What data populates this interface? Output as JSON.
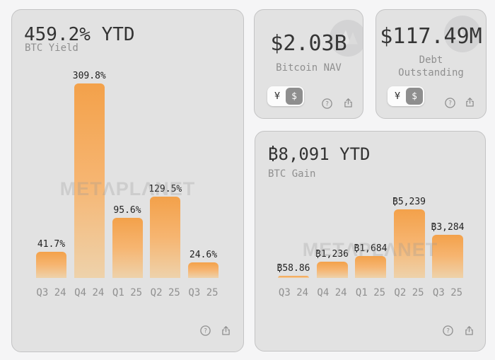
{
  "page": {
    "background": "#f5f5f6"
  },
  "watermark_text": "METΛPLΛNET",
  "cards": {
    "btc_yield": {
      "title": "459.2% YTD",
      "subtitle": "BTC Yield"
    },
    "bitcoin_nav": {
      "value": "$2.03B",
      "label": "Bitcoin NAV",
      "currency_options": [
        "¥",
        "$"
      ],
      "selected_currency": "$"
    },
    "debt_outstanding": {
      "value": "$117.49M",
      "label_line1": "Debt",
      "label_line2": "Outstanding",
      "currency_options": [
        "¥",
        "$"
      ],
      "selected_currency": "$"
    },
    "btc_gain": {
      "title": "₿8,091 YTD",
      "subtitle": "BTC Gain"
    }
  },
  "chart_data": [
    {
      "type": "bar",
      "title": "459.2% YTD",
      "metric": "BTC Yield",
      "categories": [
        "Q3 24",
        "Q4 24",
        "Q1 25",
        "Q2 25",
        "Q3 25"
      ],
      "values": [
        41.7,
        309.8,
        95.6,
        129.5,
        24.6
      ],
      "value_labels": [
        "41.7%",
        "309.8%",
        "95.6%",
        "129.5%",
        "24.6%"
      ],
      "unit": "%",
      "ylim": [
        0,
        310
      ],
      "grid": false,
      "bar_color_top": "#f3a14a",
      "bar_color_bottom": "#eed2ab"
    },
    {
      "type": "bar",
      "title": "₿8,091 YTD",
      "metric": "BTC Gain",
      "categories": [
        "Q3 24",
        "Q4 24",
        "Q1 25",
        "Q2 25",
        "Q3 25"
      ],
      "values": [
        58.86,
        1236,
        1684,
        5239,
        3284
      ],
      "value_labels": [
        "₿58.86",
        "₿1,236",
        "₿1,684",
        "₿5,239",
        "₿3,284"
      ],
      "unit": "BTC",
      "ylim": [
        0,
        5500
      ],
      "grid": false,
      "bar_color_top": "#f3a14a",
      "bar_color_bottom": "#eed2ab"
    }
  ],
  "icons": {
    "help": "question-mark-circle",
    "share": "upload-arrow",
    "logo": "metaplanet-logo"
  }
}
